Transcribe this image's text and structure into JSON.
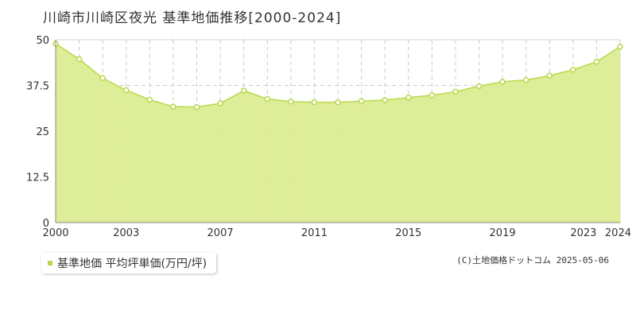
{
  "title": "川崎市川崎区夜光 基準地価推移[2000-2024]",
  "credit": "(C)土地価格ドットコム 2025-05-06",
  "colors": {
    "fill": "#dcec91",
    "line": "#b8d94a",
    "grid": "#cccccc"
  },
  "chart_data": {
    "type": "area",
    "title": "川崎市川崎区夜光 基準地価推移[2000-2024]",
    "legend": {
      "label": "基準地価 平均坪単価(万円/坪)",
      "placement": "bottom-left"
    },
    "x": [
      2000,
      2001,
      2002,
      2003,
      2004,
      2005,
      2006,
      2007,
      2008,
      2009,
      2010,
      2011,
      2012,
      2013,
      2014,
      2015,
      2016,
      2017,
      2018,
      2019,
      2020,
      2021,
      2022,
      2023,
      2024
    ],
    "x_tick_labels": [
      "2000",
      "2003",
      "2007",
      "2011",
      "2015",
      "2019",
      "2023",
      "2024"
    ],
    "series": [
      {
        "name": "基準地価 平均坪単価(万円/坪)",
        "values": [
          48.9,
          44.7,
          39.5,
          36.2,
          33.6,
          31.7,
          31.6,
          32.6,
          36.1,
          33.8,
          33.1,
          32.9,
          32.9,
          33.2,
          33.5,
          34.2,
          34.8,
          35.8,
          37.3,
          38.5,
          39.0,
          40.2,
          41.8,
          44.0,
          48.1
        ]
      }
    ],
    "y_ticks": [
      "0",
      "12.5",
      "25",
      "37.5",
      "50"
    ],
    "ylim": [
      0,
      50
    ],
    "grid": true
  }
}
